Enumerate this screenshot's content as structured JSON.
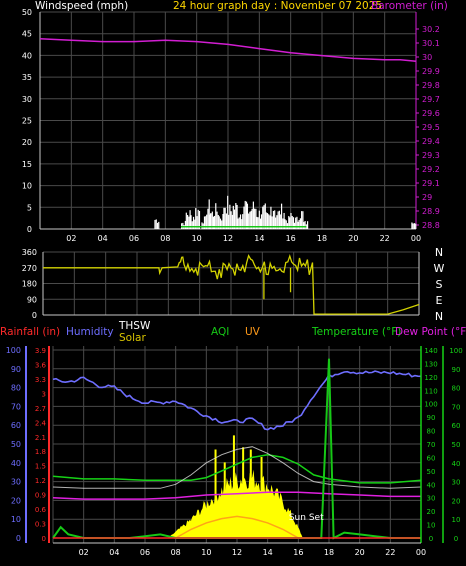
{
  "colors": {
    "background": "#000000",
    "grid": "#4a4a4a",
    "axis_frame": "#c8c8c8",
    "tick_text": "#ffffff",
    "wind_speed": "#ffffff",
    "wind_gust": "#16c816",
    "barometer": "#d21ed2",
    "direction": "#d2d200",
    "rain": "#ff2a2a",
    "humidity": "#6e6eff",
    "thsw": "#ffffff",
    "solar": "#ffff00",
    "aqi": "#16c816",
    "uv": "#ff9a1a",
    "temperature": "#16d216",
    "dew_point": "#e020e0",
    "accent_title": "#ffd700"
  },
  "chart_data": [
    {
      "type": "line",
      "id": "wind-baro",
      "title": "24 hour graph day : November 07 2025",
      "left_label": "Windspeed (mph)",
      "right_label": "Barometer (in)",
      "x_ticks": [
        "02",
        "04",
        "06",
        "08",
        "10",
        "12",
        "14",
        "16",
        "18",
        "20",
        "22",
        "00"
      ],
      "x_range": [
        0,
        24
      ],
      "y_left_range": [
        0,
        50
      ],
      "y_left_ticks": [
        "0",
        "5",
        "10",
        "15",
        "20",
        "25",
        "30",
        "35",
        "40",
        "45",
        "50"
      ],
      "y_right_range": [
        28.8,
        30.25
      ],
      "y_right_ticks": [
        "28.8",
        "28.9",
        "29",
        "29.1",
        "29.2",
        "29.3",
        "29.4",
        "29.5",
        "29.6",
        "29.7",
        "29.8",
        "29.9",
        "30",
        "30.1",
        "30.2"
      ],
      "barometer": {
        "x": [
          0,
          2,
          4,
          6,
          8,
          10,
          12,
          14,
          16,
          18,
          20,
          22,
          23,
          24
        ],
        "y": [
          30.13,
          30.12,
          30.11,
          30.11,
          30.12,
          30.11,
          30.09,
          30.06,
          30.03,
          30.01,
          29.99,
          29.98,
          29.98,
          29.97
        ]
      },
      "wind_speed": {
        "x": [
          7.5,
          9.2,
          9.5,
          9.8,
          10.1,
          10.5,
          10.8,
          11,
          11.3,
          11.6,
          11.9,
          12.2,
          12.5,
          12.8,
          13.1,
          13.4,
          13.7,
          14,
          14.3,
          14.6,
          14.9,
          15.2,
          15.5,
          15.8,
          16.1,
          16.4,
          16.7,
          17,
          23.9
        ],
        "y": [
          3,
          2,
          5,
          4,
          6,
          3,
          7,
          5,
          6,
          4,
          8,
          6,
          7,
          5,
          8,
          6,
          7,
          5,
          6,
          4,
          7,
          5,
          6,
          3,
          4,
          3,
          5,
          2,
          3
        ]
      }
    },
    {
      "type": "line",
      "id": "wind-direction",
      "y_ticks": [
        "360",
        "270",
        "180",
        "90",
        "0"
      ],
      "y_range": [
        0,
        360
      ],
      "compass_labels": [
        "N",
        "W",
        "S",
        "E",
        "N"
      ],
      "x_range": [
        0,
        24
      ],
      "direction": {
        "x": [
          0,
          7.4,
          7.45,
          7.6,
          8.6,
          8.7,
          9,
          9.5,
          10,
          10.5,
          11,
          11.5,
          12,
          12.5,
          13,
          13.5,
          14,
          14.5,
          15,
          15.5,
          16,
          16.5,
          17,
          17.2,
          17.3,
          22,
          23,
          24
        ],
        "y": [
          270,
          270,
          240,
          270,
          275,
          300,
          290,
          265,
          300,
          280,
          250,
          295,
          270,
          260,
          300,
          285,
          270,
          295,
          255,
          300,
          290,
          280,
          230,
          300,
          5,
          5,
          30,
          60
        ]
      }
    },
    {
      "type": "line",
      "id": "temp-humidity",
      "labels": {
        "rain": "Rainfall (in)",
        "humidity": "Humidity",
        "thsw": "THSW",
        "solar": "Solar",
        "aqi": "AQI",
        "uv": "UV",
        "temperature": "Temperature (°F)",
        "dew_point": "Dew Point (°F)",
        "sunset": "Sun Set"
      },
      "x_ticks": [
        "02",
        "04",
        "06",
        "08",
        "10",
        "12",
        "14",
        "16",
        "18",
        "20",
        "22",
        "00"
      ],
      "x_range": [
        0,
        24
      ],
      "y_humidity_ticks": [
        "0",
        "10",
        "20",
        "30",
        "40",
        "50",
        "60",
        "70",
        "80",
        "90",
        "100"
      ],
      "y_rain_ticks": [
        "0",
        "0.3",
        "0.6",
        "0.9",
        "1.2",
        "1.5",
        "1.8",
        "2.1",
        "2.4",
        "2.7",
        "3",
        "3.3",
        "3.6",
        "3.9"
      ],
      "y_temp_ticks": [
        "0",
        "10",
        "20",
        "30",
        "40",
        "50",
        "60",
        "70",
        "80",
        "90",
        "100",
        "110",
        "120",
        "130",
        "140"
      ],
      "y_right_ticks": [
        "0",
        "10",
        "20",
        "30",
        "40",
        "50",
        "60",
        "70",
        "80",
        "90",
        "100"
      ],
      "humidity": {
        "x": [
          0,
          1,
          2,
          3,
          4,
          5,
          6,
          7,
          8,
          9,
          10,
          11,
          12,
          13,
          14,
          15,
          16,
          17,
          18,
          19,
          20,
          21,
          22,
          23,
          24
        ],
        "y": [
          84,
          83,
          85,
          81,
          80,
          75,
          72,
          72,
          73,
          69,
          65,
          62,
          62,
          63,
          58,
          60,
          64,
          76,
          86,
          89,
          88,
          88,
          88,
          87,
          86
        ]
      },
      "temperature": {
        "x": [
          0,
          2,
          4,
          6,
          7,
          8,
          9,
          10,
          11,
          12,
          13,
          14,
          15,
          16,
          17,
          18,
          20,
          22,
          24
        ],
        "y": [
          46,
          44,
          44,
          43,
          43,
          43,
          43,
          45,
          50,
          55,
          60,
          62,
          60,
          55,
          47,
          44,
          41,
          41,
          43
        ]
      },
      "dew_point": {
        "x": [
          0,
          2,
          4,
          6,
          8,
          10,
          12,
          14,
          16,
          18,
          20,
          22,
          24
        ],
        "y": [
          30,
          29,
          29,
          29,
          30,
          32,
          33,
          34,
          34,
          33,
          32,
          31,
          31
        ]
      },
      "thsw": {
        "x": [
          0,
          2,
          4,
          6,
          7,
          8,
          9,
          10,
          11,
          12,
          13,
          14,
          15,
          16,
          17,
          18,
          20,
          22,
          24
        ],
        "y": [
          38,
          37,
          37,
          37,
          37,
          40,
          47,
          56,
          62,
          66,
          68,
          63,
          56,
          48,
          42,
          40,
          38,
          37,
          38
        ]
      },
      "solar_envelope": {
        "x": [
          7.5,
          8,
          8.5,
          9,
          9.5,
          10,
          10.5,
          11,
          11.5,
          12,
          12.5,
          13,
          13.5,
          14,
          14.5,
          15,
          15.5,
          16,
          16.3
        ],
        "y": [
          0,
          6,
          12,
          18,
          26,
          34,
          41,
          48,
          54,
          58,
          60,
          60,
          57,
          53,
          45,
          36,
          24,
          10,
          0
        ]
      },
      "solar_spikes": {
        "x": [
          10.6,
          11.2,
          11.8,
          12.4,
          12.9,
          13.6
        ],
        "y": [
          82,
          70,
          95,
          84,
          82,
          75
        ]
      },
      "uv": {
        "x": [
          8,
          9,
          10,
          11,
          12,
          13,
          14,
          15,
          16
        ],
        "y": [
          0,
          8,
          14,
          18,
          20,
          18,
          14,
          8,
          0
        ]
      },
      "aqi": {
        "x": [
          0,
          0.5,
          1,
          2,
          3,
          4,
          5,
          6,
          7,
          8,
          9,
          10,
          11,
          12,
          13,
          14,
          15,
          16,
          17,
          17.5,
          18,
          18.3,
          19,
          20,
          21,
          22,
          23,
          24
        ],
        "y": [
          0,
          6,
          2,
          0,
          0,
          0,
          0,
          1,
          2,
          0,
          0,
          0,
          0,
          0,
          0,
          0,
          0,
          0,
          0,
          0,
          100,
          0,
          3,
          2,
          1,
          0,
          0,
          0
        ]
      },
      "rain": {
        "x": [
          0,
          24
        ],
        "y": [
          0,
          0
        ]
      },
      "sunset_x": 17.95
    }
  ]
}
